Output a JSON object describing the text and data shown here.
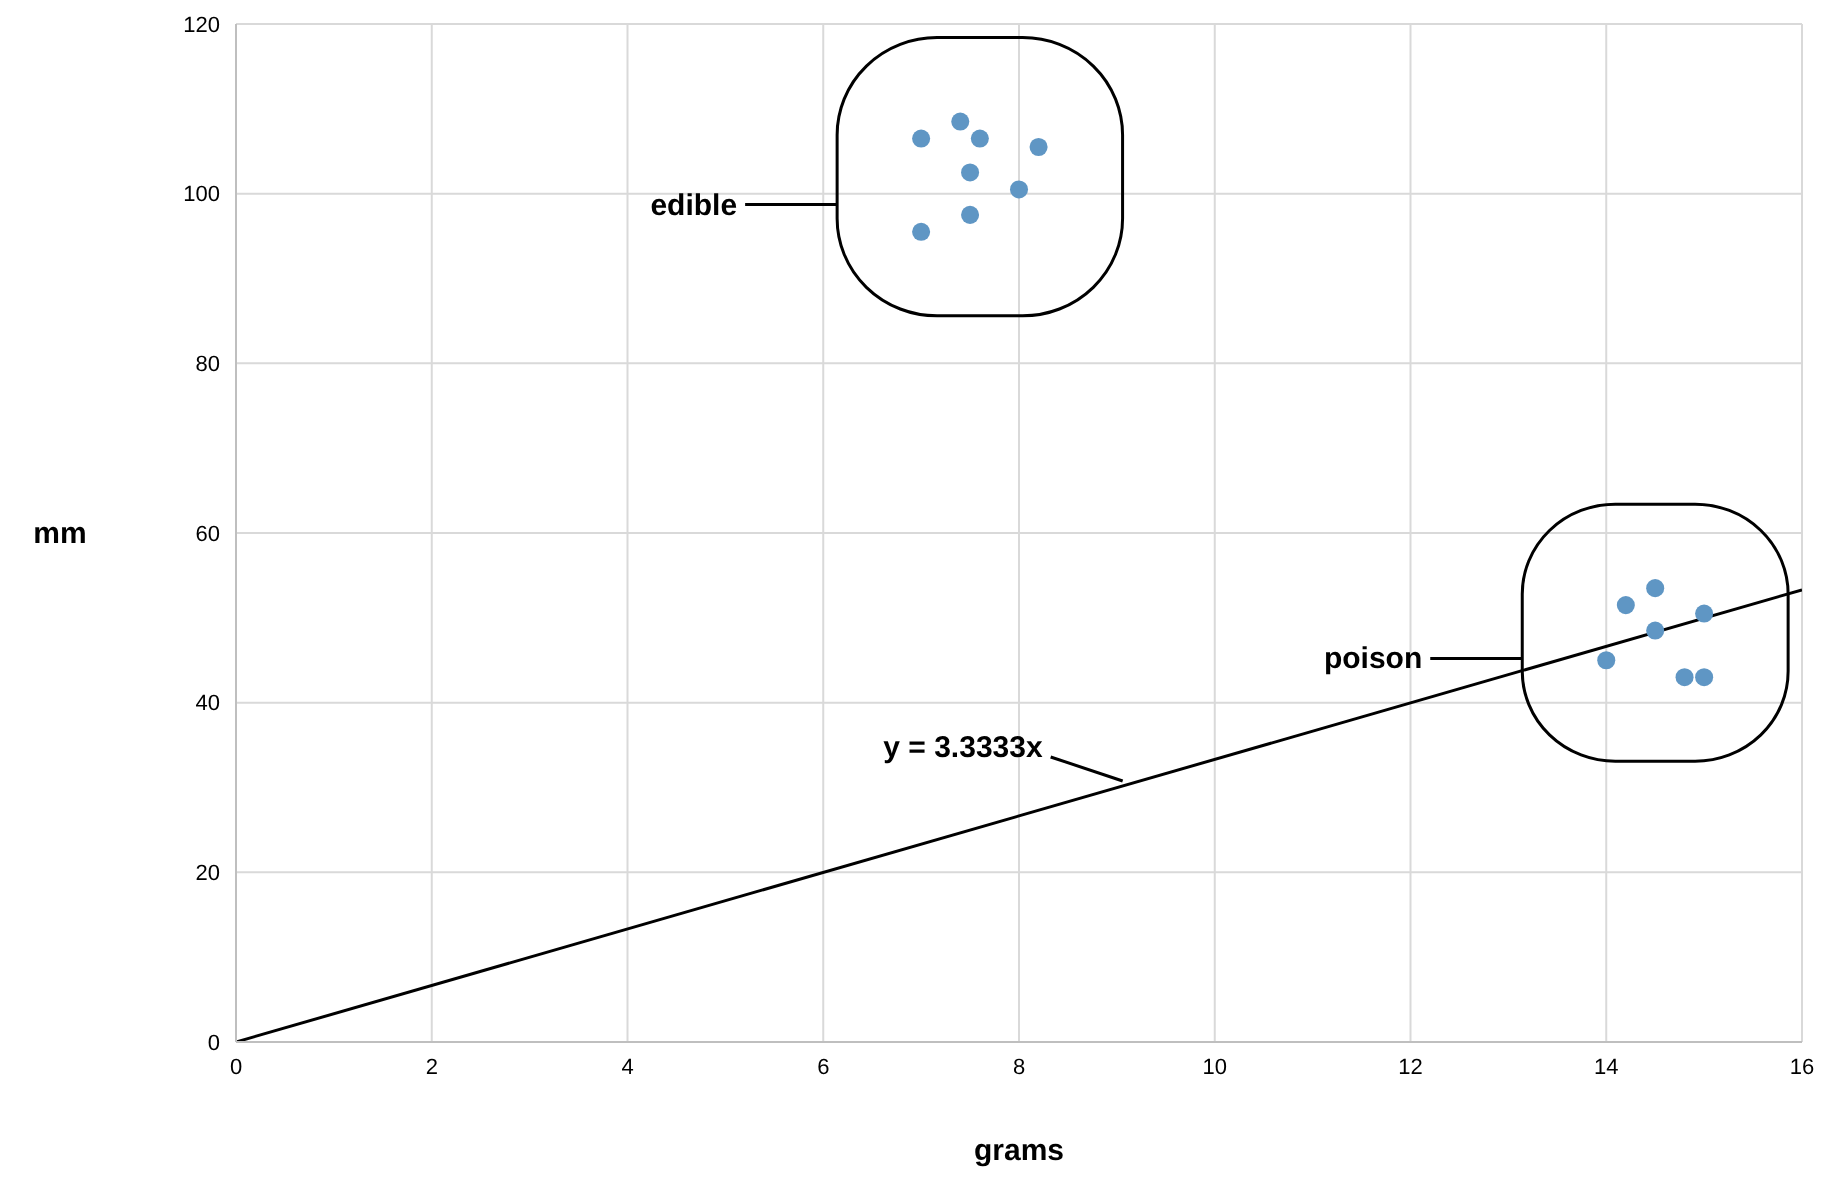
{
  "chart_data": {
    "type": "scatter",
    "xlabel": "grams",
    "ylabel": "mm",
    "xlim": [
      0,
      16
    ],
    "ylim": [
      0,
      120
    ],
    "xticks": [
      0,
      2,
      4,
      6,
      8,
      10,
      12,
      14,
      16
    ],
    "yticks": [
      0,
      20,
      40,
      60,
      80,
      100,
      120
    ],
    "grid": true,
    "marker": "circle",
    "series": [
      {
        "color": "#5f96c4",
        "x": [
          7,
          7.4,
          7.6,
          8.2,
          7.5,
          8,
          7.5,
          7
        ],
        "values": [
          106.5,
          108.5,
          106.5,
          105.5,
          102.5,
          100.5,
          97.5,
          95.5
        ]
      },
      {
        "color": "#5f96c4",
        "x": [
          14.5,
          14.2,
          15,
          14.5,
          14,
          14.8,
          15
        ],
        "values": [
          53.5,
          51.5,
          50.5,
          48.5,
          45,
          43,
          43
        ]
      },
      {
        "type": "line",
        "color": "#000000",
        "marker": "none",
        "x": [
          0,
          16
        ],
        "values": [
          0,
          53.3
        ]
      }
    ],
    "annotations": [
      "edible",
      "poison",
      {
        "text": "y = 3.3333x",
        "x": 9.1,
        "y": 30.3
      }
    ]
  }
}
